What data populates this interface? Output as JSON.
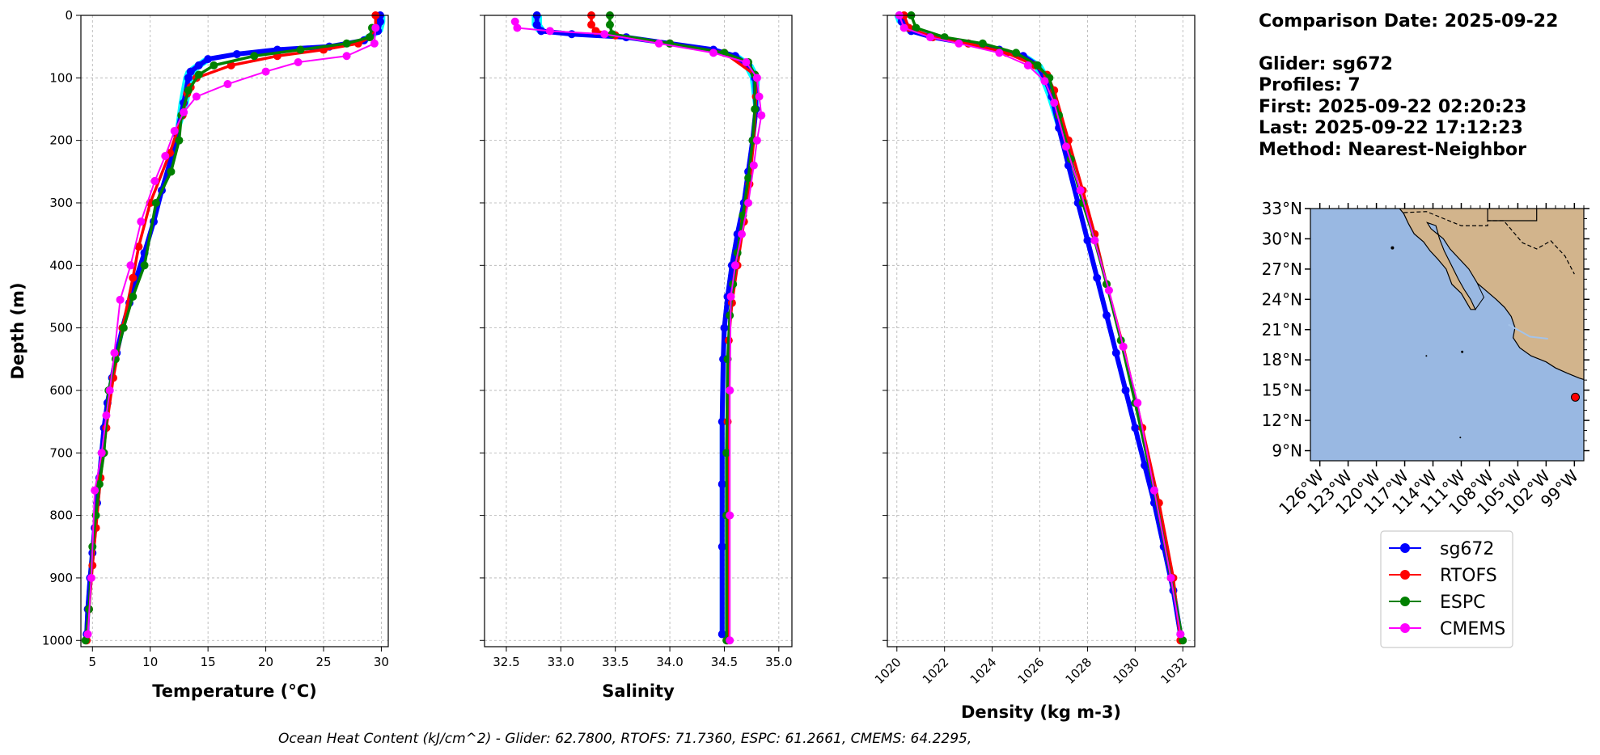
{
  "info": {
    "comparison_date": "Comparison Date: 2025-09-22",
    "glider": "Glider: sg672",
    "profiles": "Profiles: 7",
    "first": "First: 2025-09-22 02:20:23",
    "last": "Last: 2025-09-22 17:12:23",
    "method": "Method: Nearest-Neighbor"
  },
  "footer_text": "Ocean Heat Content (kJ/cm^2) - Glider: 62.7800,  RTOFS: 71.7360,  ESPC: 61.2661,  CMEMS: 64.2295,",
  "legend": [
    {
      "name": "sg672",
      "color": "#0000ff"
    },
    {
      "name": "RTOFS",
      "color": "#ff0000"
    },
    {
      "name": "ESPC",
      "color": "#008000"
    },
    {
      "name": "CMEMS",
      "color": "#ff00ff"
    }
  ],
  "glider_profile_color": "#00ffff",
  "map": {
    "ocean_color": "#99b8e2",
    "land_color": "#d2b48c",
    "marker_color": "#ff0000",
    "marker": {
      "lon": -98.9,
      "lat": 14.3
    },
    "lon_range": [
      -127,
      -98
    ],
    "lat_range": [
      8,
      33
    ],
    "lat_ticks": [
      "33°N",
      "30°N",
      "27°N",
      "24°N",
      "21°N",
      "18°N",
      "15°N",
      "12°N",
      "9°N"
    ],
    "lat_values": [
      33,
      30,
      27,
      24,
      21,
      18,
      15,
      12,
      9
    ],
    "lon_ticks": [
      "126°W",
      "123°W",
      "120°W",
      "117°W",
      "114°W",
      "111°W",
      "108°W",
      "105°W",
      "102°W",
      "99°W"
    ],
    "lon_values": [
      -126,
      -123,
      -120,
      -117,
      -114,
      -111,
      -108,
      -105,
      -102,
      -99
    ]
  },
  "chart_data": [
    {
      "type": "line",
      "xlabel": "Temperature (°C)",
      "ylabel": "Depth (m)",
      "xlim": [
        4,
        30.6
      ],
      "ylim": [
        1010,
        0
      ],
      "xticks": [
        5,
        10,
        15,
        20,
        25,
        30
      ],
      "yticks": [
        0,
        100,
        200,
        300,
        400,
        500,
        600,
        700,
        800,
        900,
        1000
      ],
      "grid": true,
      "series": [
        {
          "name": "sg672",
          "x": [
            29.9,
            29.9,
            29.7,
            28.5,
            25.5,
            21.0,
            17.5,
            15.0,
            14.2,
            13.5,
            13.3,
            12.9,
            12.3,
            11.8,
            11.0,
            10.3,
            9.5,
            8.8,
            8.2,
            7.6,
            7.1,
            6.7,
            6.3,
            6.0,
            5.8,
            5.6,
            5.4,
            5.2,
            5.0,
            4.8,
            4.6,
            4.5
          ],
          "y": [
            0,
            10,
            25,
            40,
            50,
            55,
            62,
            70,
            80,
            90,
            100,
            140,
            190,
            230,
            280,
            330,
            380,
            420,
            460,
            500,
            540,
            580,
            620,
            660,
            700,
            740,
            780,
            820,
            860,
            900,
            950,
            990
          ]
        },
        {
          "name": "RTOFS",
          "x": [
            29.5,
            29.5,
            29.0,
            28.0,
            25.0,
            21.0,
            17.0,
            14.0,
            13.5,
            13.2,
            12.8,
            11.7,
            10.0,
            9.0,
            8.5,
            7.6,
            6.8,
            6.2,
            5.7,
            5.3,
            5.0,
            4.7,
            4.5
          ],
          "y": [
            0,
            20,
            35,
            45,
            55,
            65,
            80,
            100,
            115,
            125,
            160,
            220,
            300,
            370,
            420,
            500,
            580,
            660,
            740,
            820,
            880,
            950,
            1000
          ]
        },
        {
          "name": "ESPC",
          "x": [
            29.2,
            29.0,
            27.0,
            23.0,
            19.0,
            15.5,
            14.2,
            13.3,
            12.7,
            12.5,
            11.8,
            10.5,
            9.5,
            8.5,
            7.7,
            7.0,
            6.4,
            6.0,
            5.6,
            5.3,
            5.0,
            4.7,
            4.4
          ],
          "y": [
            20,
            35,
            45,
            55,
            65,
            80,
            95,
            120,
            160,
            200,
            250,
            300,
            400,
            450,
            500,
            550,
            600,
            700,
            750,
            800,
            850,
            950,
            1000
          ]
        },
        {
          "name": "CMEMS",
          "x": [
            29.5,
            29.4,
            27.0,
            22.8,
            20.0,
            16.7,
            14.0,
            12.9,
            12.1,
            11.3,
            10.4,
            9.2,
            8.3,
            7.4,
            6.9,
            6.5,
            6.2,
            5.8,
            5.2,
            4.9,
            4.6
          ],
          "y": [
            20,
            45,
            65,
            75,
            90,
            110,
            130,
            155,
            185,
            225,
            265,
            330,
            400,
            455,
            540,
            600,
            640,
            700,
            760,
            900,
            990
          ]
        }
      ]
    },
    {
      "type": "line",
      "xlabel": "Salinity",
      "xlim": [
        32.3,
        35.12
      ],
      "ylim": [
        1010,
        0
      ],
      "xticks": [
        32.5,
        33.0,
        33.5,
        34.0,
        34.5,
        35.0
      ],
      "yticks": [
        0,
        100,
        200,
        300,
        400,
        500,
        600,
        700,
        800,
        900,
        1000
      ],
      "grid": true,
      "series": [
        {
          "name": "sg672",
          "x": [
            32.78,
            32.78,
            32.82,
            33.1,
            33.6,
            34.0,
            34.4,
            34.6,
            34.72,
            34.78,
            34.79,
            34.76,
            34.72,
            34.68,
            34.62,
            34.57,
            34.53,
            34.5,
            34.49,
            34.48,
            34.48,
            34.48,
            34.48
          ],
          "y": [
            0,
            15,
            25,
            30,
            35,
            45,
            55,
            65,
            80,
            100,
            150,
            200,
            250,
            300,
            350,
            400,
            450,
            500,
            550,
            650,
            750,
            850,
            990
          ]
        },
        {
          "name": "RTOFS",
          "x": [
            33.28,
            33.28,
            33.32,
            33.5,
            34.0,
            34.5,
            34.78,
            34.79,
            34.77,
            34.73,
            34.68,
            34.62,
            34.57,
            34.54,
            34.53,
            34.53,
            34.53
          ],
          "y": [
            0,
            15,
            25,
            32,
            45,
            60,
            95,
            130,
            200,
            270,
            330,
            400,
            460,
            520,
            650,
            800,
            1000
          ]
        },
        {
          "name": "ESPC",
          "x": [
            33.45,
            33.45,
            33.47,
            34.0,
            34.5,
            34.72,
            34.78,
            34.78,
            34.76,
            34.72,
            34.67,
            34.62,
            34.58,
            34.55,
            34.53,
            34.52,
            34.52,
            34.52
          ],
          "y": [
            0,
            15,
            30,
            45,
            60,
            75,
            95,
            150,
            200,
            260,
            320,
            380,
            430,
            480,
            550,
            700,
            800,
            1000
          ]
        },
        {
          "name": "CMEMS",
          "x": [
            32.58,
            32.6,
            32.9,
            33.4,
            33.9,
            34.4,
            34.7,
            34.8,
            34.82,
            34.84,
            34.8,
            34.77,
            34.72,
            34.66,
            34.6,
            34.56,
            34.55,
            34.55,
            34.55
          ],
          "y": [
            10,
            20,
            25,
            30,
            45,
            60,
            75,
            100,
            130,
            160,
            200,
            240,
            300,
            350,
            400,
            450,
            600,
            800,
            1000
          ]
        }
      ]
    },
    {
      "type": "line",
      "xlabel": "Density (kg m-3)",
      "xlim": [
        1019.6,
        1032.5
      ],
      "ylim": [
        1010,
        0
      ],
      "xticks": [
        1020,
        1022,
        1024,
        1026,
        1028,
        1030,
        1032
      ],
      "yticks": [
        0,
        100,
        200,
        300,
        400,
        500,
        600,
        700,
        800,
        900,
        1000
      ],
      "grid": true,
      "series": [
        {
          "name": "sg672",
          "x": [
            1020.1,
            1020.2,
            1020.6,
            1021.5,
            1023.0,
            1024.3,
            1025.3,
            1025.9,
            1026.2,
            1026.5,
            1026.8,
            1027.2,
            1027.6,
            1028.0,
            1028.4,
            1028.8,
            1029.2,
            1029.6,
            1030.0,
            1030.4,
            1030.8,
            1031.2,
            1031.6,
            1031.9
          ],
          "y": [
            0,
            10,
            25,
            35,
            45,
            55,
            65,
            80,
            100,
            130,
            180,
            240,
            300,
            360,
            420,
            480,
            540,
            600,
            660,
            720,
            780,
            850,
            920,
            990
          ]
        },
        {
          "name": "RTOFS",
          "x": [
            1020.3,
            1020.5,
            1021.5,
            1023.0,
            1024.6,
            1025.8,
            1026.3,
            1026.6,
            1027.2,
            1027.8,
            1028.3,
            1028.8,
            1029.5,
            1030.3,
            1031.0,
            1031.6,
            1031.9
          ],
          "y": [
            0,
            20,
            35,
            45,
            60,
            80,
            95,
            120,
            200,
            280,
            350,
            430,
            530,
            660,
            780,
            900,
            1000
          ]
        },
        {
          "name": "ESPC",
          "x": [
            1020.6,
            1020.8,
            1022.0,
            1023.6,
            1025.0,
            1025.9,
            1026.4,
            1026.8,
            1027.3,
            1027.8,
            1028.3,
            1028.8,
            1029.4,
            1030.0,
            1030.8,
            1031.5,
            1032.0
          ],
          "y": [
            0,
            20,
            35,
            45,
            60,
            80,
            100,
            160,
            230,
            300,
            360,
            430,
            520,
            620,
            760,
            900,
            1000
          ]
        },
        {
          "name": "CMEMS",
          "x": [
            1020.1,
            1020.3,
            1021.4,
            1022.6,
            1024.3,
            1025.5,
            1026.2,
            1026.6,
            1027.1,
            1027.7,
            1028.3,
            1028.9,
            1029.5,
            1030.1,
            1030.8,
            1031.5,
            1031.9
          ],
          "y": [
            0,
            20,
            35,
            45,
            60,
            80,
            105,
            140,
            210,
            280,
            360,
            440,
            530,
            620,
            760,
            900,
            990
          ]
        }
      ]
    }
  ]
}
